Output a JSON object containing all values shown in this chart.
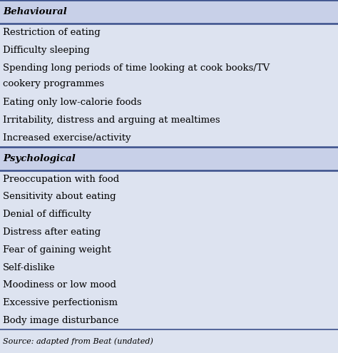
{
  "header1": "Behavioural",
  "header2": "Psychological",
  "behavioural_items": [
    "Restriction of eating",
    "Difficulty sleeping",
    "Spending long periods of time looking at cook books/TV\ncookery programmes",
    "Eating only low-calorie foods",
    "Irritability, distress and arguing at mealtimes",
    "Increased exercise/activity"
  ],
  "psychological_items": [
    "Preoccupation with food",
    "Sensitivity about eating",
    "Denial of difficulty",
    "Distress after eating",
    "Fear of gaining weight",
    "Self-dislike",
    "Moodiness or low mood",
    "Excessive perfectionism",
    "Body image disturbance"
  ],
  "source_text": "Source: adapted from Beat (undated)",
  "header_bg_color": "#c8d0e8",
  "body_bg_color": "#dde3f0",
  "source_bg_color": "#dde3f0",
  "border_color": "#3a4f8a",
  "header_font_size": 9.5,
  "body_font_size": 9.5,
  "source_font_size": 8.0,
  "fig_width": 4.74,
  "fig_height": 4.95,
  "dpi": 100
}
